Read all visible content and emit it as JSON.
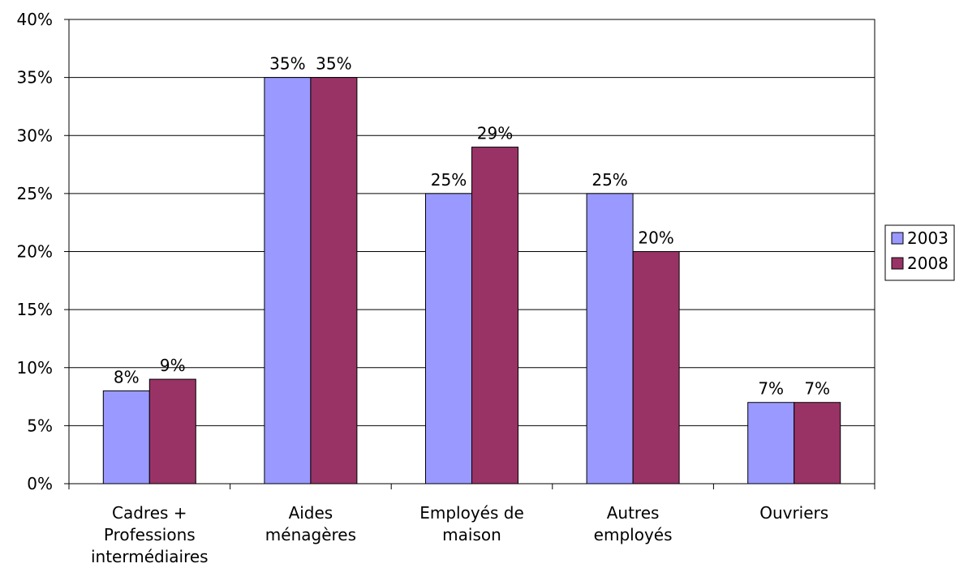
{
  "chart_data": {
    "type": "bar",
    "categories": [
      [
        "Cadres +",
        "Professions",
        "intermédiaires"
      ],
      [
        "Aides",
        "ménagères"
      ],
      [
        "Employés de",
        "maison"
      ],
      [
        "Autres",
        "employés"
      ],
      [
        "Ouvriers"
      ]
    ],
    "series": [
      {
        "name": "2003",
        "color": "#9999ff",
        "values": [
          8,
          35,
          25,
          25,
          7
        ],
        "labels": [
          "8%",
          "35%",
          "25%",
          "25%",
          "7%"
        ]
      },
      {
        "name": "2008",
        "color": "#993366",
        "values": [
          9,
          35,
          29,
          20,
          7
        ],
        "labels": [
          "9%",
          "35%",
          "29%",
          "20%",
          "7%"
        ]
      }
    ],
    "ylim": [
      0,
      40
    ],
    "yticks": [
      {
        "value": 0,
        "label": "0%"
      },
      {
        "value": 5,
        "label": "5%"
      },
      {
        "value": 10,
        "label": "10%"
      },
      {
        "value": 15,
        "label": "15%"
      },
      {
        "value": 20,
        "label": "20%"
      },
      {
        "value": 25,
        "label": "25%"
      },
      {
        "value": 30,
        "label": "30%"
      },
      {
        "value": 35,
        "label": "35%"
      },
      {
        "value": 40,
        "label": "40%"
      }
    ],
    "grid": true,
    "legend_position": "right",
    "title": "",
    "xlabel": "",
    "ylabel": ""
  }
}
